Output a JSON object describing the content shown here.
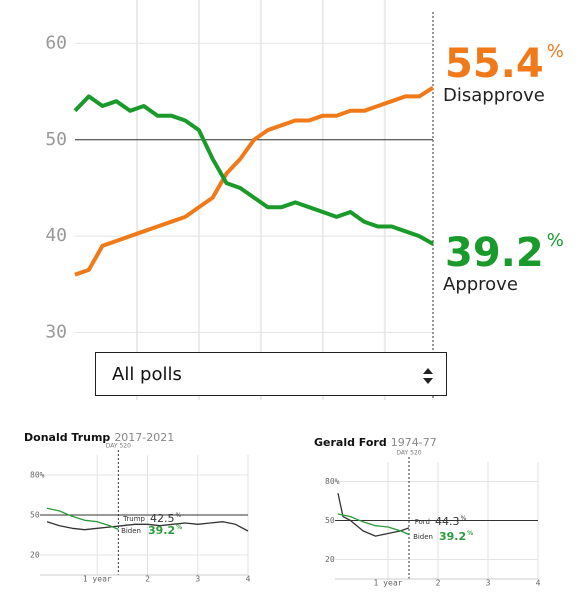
{
  "dropdown": {
    "selected": "All polls"
  },
  "chart_data": [
    {
      "type": "line",
      "unit": "%",
      "xlim": [
        0,
        520
      ],
      "xticks": [
        90,
        180,
        270,
        360,
        450
      ],
      "marker": {
        "x": 520
      },
      "ylim": [
        23,
        64.5
      ],
      "yticks": [
        30,
        40,
        50,
        60
      ],
      "reference": 50,
      "grid": true,
      "series": [
        {
          "name": "Disapprove",
          "color": "#f07a1a",
          "x": [
            0,
            20,
            40,
            60,
            80,
            100,
            120,
            140,
            160,
            180,
            200,
            220,
            240,
            260,
            280,
            300,
            320,
            340,
            360,
            380,
            400,
            420,
            440,
            460,
            480,
            500,
            520
          ],
          "values": [
            36,
            36.5,
            39,
            39.5,
            40,
            40.5,
            41,
            41.5,
            42,
            43,
            44,
            46.5,
            48,
            50,
            51,
            51.5,
            52,
            52,
            52.5,
            52.5,
            53,
            53,
            53.5,
            54,
            54.5,
            54.5,
            55.4
          ]
        },
        {
          "name": "Approve",
          "color": "#1a9a2a",
          "x": [
            0,
            20,
            40,
            60,
            80,
            100,
            120,
            140,
            160,
            180,
            200,
            220,
            240,
            260,
            280,
            300,
            320,
            340,
            360,
            380,
            400,
            420,
            440,
            460,
            480,
            500,
            520
          ],
          "values": [
            53,
            54.5,
            53.5,
            54,
            53,
            53.5,
            52.5,
            52.5,
            52,
            51,
            48,
            45.5,
            45,
            44,
            43,
            43,
            43.5,
            43,
            42.5,
            42,
            42.5,
            41.5,
            41,
            41,
            40.5,
            40,
            39.2
          ]
        }
      ]
    },
    {
      "type": "line",
      "title": "Donald Trump",
      "subtitle": "2017-2021",
      "unit": "%",
      "xlim": [
        0,
        4
      ],
      "xticks": [
        {
          "value": 1,
          "label": "1 year"
        },
        2,
        3,
        4
      ],
      "marker": {
        "x": 1.42,
        "label": "DAY 520"
      },
      "ylim": [
        5,
        95
      ],
      "yticks": [
        {
          "value": 80,
          "label": "80%"
        },
        50,
        20
      ],
      "reference": 50,
      "grid": true,
      "series": [
        {
          "name": "Trump",
          "color": "#333333",
          "x": [
            0,
            0.25,
            0.5,
            0.75,
            1,
            1.25,
            1.5,
            1.75,
            2,
            2.25,
            2.5,
            2.75,
            3,
            3.25,
            3.5,
            3.75,
            4
          ],
          "values": [
            45,
            42,
            40,
            39,
            40,
            41,
            42,
            43,
            43,
            42,
            43,
            44,
            43,
            44,
            45,
            43,
            38
          ]
        },
        {
          "name": "Biden",
          "color": "#2b9a3a",
          "x": [
            0,
            0.25,
            0.5,
            0.75,
            1,
            1.25,
            1.42
          ],
          "values": [
            55,
            53,
            49,
            46,
            45,
            42,
            39.2
          ]
        }
      ],
      "end_values": [
        42.5,
        39.2
      ]
    },
    {
      "type": "line",
      "title": "Gerald Ford",
      "subtitle": "1974-77",
      "unit": "%",
      "xlim": [
        0,
        4
      ],
      "xticks": [
        {
          "value": 1,
          "label": "1 year"
        },
        2,
        3,
        4
      ],
      "marker": {
        "x": 1.42,
        "label": "DAY 520"
      },
      "ylim": [
        5,
        95
      ],
      "yticks": [
        {
          "value": 80,
          "label": "80%"
        },
        50,
        20
      ],
      "reference": 50,
      "grid": true,
      "series": [
        {
          "name": "Ford",
          "color": "#333333",
          "x": [
            0,
            0.1,
            0.25,
            0.5,
            0.75,
            1,
            1.25,
            1.42
          ],
          "values": [
            71,
            53,
            50,
            42,
            38,
            40,
            42,
            44.3
          ]
        },
        {
          "name": "Biden",
          "color": "#2b9a3a",
          "x": [
            0,
            0.25,
            0.5,
            0.75,
            1,
            1.25,
            1.42
          ],
          "values": [
            55,
            53,
            49,
            46,
            45,
            42,
            39.2
          ]
        }
      ],
      "end_values": [
        44.3,
        39.2
      ]
    }
  ]
}
